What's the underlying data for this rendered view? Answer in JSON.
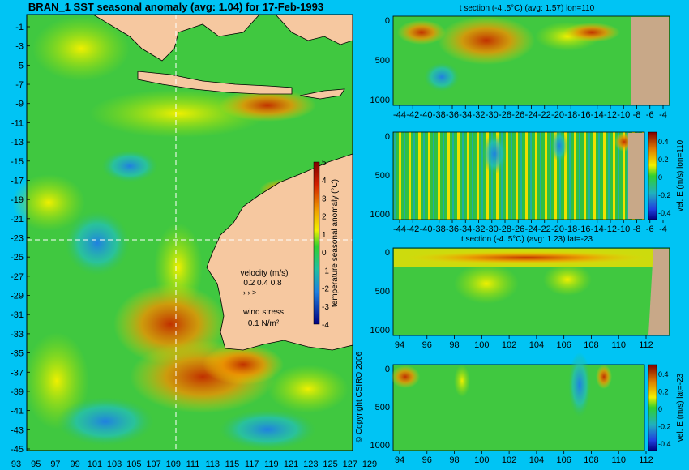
{
  "title": "BRAN_1 SST seasonal anomaly (avg: 1.04) for 17-Feb-1993",
  "copyright": "© Copyright CSIRO 2006",
  "map": {
    "lat_labels": [
      "-1",
      "-3",
      "-5",
      "-7",
      "-9",
      "-11",
      "-13",
      "-15",
      "-17",
      "-19",
      "-21",
      "-23",
      "-25",
      "-27",
      "-29",
      "-31",
      "-33",
      "-35",
      "-37",
      "-39",
      "-41",
      "-43",
      "-45"
    ],
    "lon_labels": [
      "93",
      "95",
      "97",
      "99",
      "101",
      "103",
      "105",
      "107",
      "109",
      "111",
      "113",
      "115",
      "117",
      "119",
      "121",
      "123",
      "125",
      "127",
      "129"
    ],
    "section_lon": 110,
    "section_lat": -23,
    "colorbar": {
      "label": "temperature seasonal anomaly (°C)",
      "ticks": [
        "5",
        "4",
        "3",
        "2",
        "1",
        "0",
        "-1",
        "-2",
        "-3",
        "-4"
      ]
    },
    "legend": {
      "velocity_title": "velocity (m/s)",
      "velocity_values": "0.2 0.4 0.8",
      "wind_title": "wind stress",
      "wind_value": "0.1 N/m²"
    }
  },
  "panels": [
    {
      "title": "t section (-4..5°C) (avg: 1.57) lon=110",
      "x_ticks": [
        "-44",
        "-42",
        "-40",
        "-38",
        "-36",
        "-34",
        "-32",
        "-30",
        "-28",
        "-26",
        "-24",
        "-22",
        "-20",
        "-18",
        "-16",
        "-14",
        "-12",
        "-10",
        "-8",
        "-6",
        "-4"
      ],
      "y_ticks": [
        "0",
        "500",
        "1000"
      ],
      "colorbar": false
    },
    {
      "title": "",
      "x_ticks": [
        "-44",
        "-42",
        "-40",
        "-38",
        "-36",
        "-34",
        "-32",
        "-30",
        "-28",
        "-26",
        "-24",
        "-22",
        "-20",
        "-18",
        "-16",
        "-14",
        "-12",
        "-10",
        "-8",
        "-6",
        "-4"
      ],
      "y_ticks": [
        "0",
        "500",
        "1000"
      ],
      "colorbar": true,
      "colorbar_label": "vel. E (m/s) lon=110",
      "colorbar_ticks": [
        "0.4",
        "0.2",
        "0",
        "-0.2",
        "-0.4"
      ]
    },
    {
      "title": "t section (-4..5°C) (avg: 1.23) lat=-23",
      "x_ticks": [
        "94",
        "96",
        "98",
        "100",
        "102",
        "104",
        "106",
        "108",
        "110",
        "112"
      ],
      "y_ticks": [
        "0",
        "500",
        "1000"
      ],
      "colorbar": false
    },
    {
      "title": "",
      "x_ticks": [
        "94",
        "96",
        "98",
        "100",
        "102",
        "104",
        "106",
        "108",
        "110",
        "112"
      ],
      "y_ticks": [
        "0",
        "500",
        "1000"
      ],
      "colorbar": true,
      "colorbar_label": "vel. E (m/s) lat=-23",
      "colorbar_ticks": [
        "0.4",
        "0.2",
        "0",
        "-0.2",
        "-0.4"
      ]
    }
  ]
}
